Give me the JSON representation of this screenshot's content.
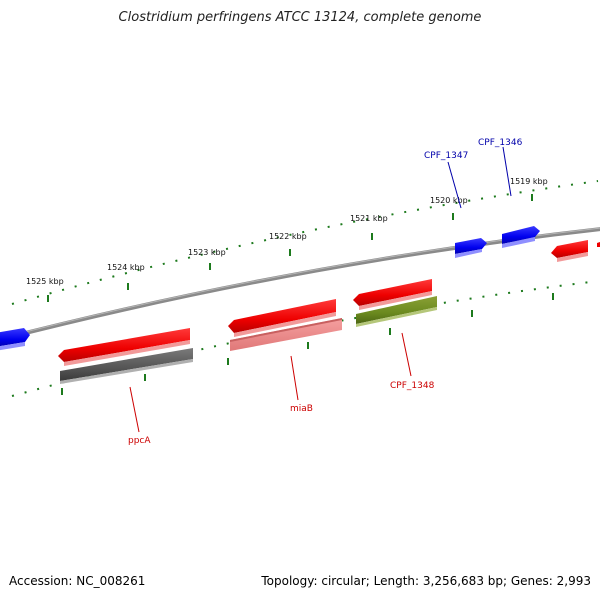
{
  "title": "Clostridium perfringens ATCC 13124, complete genome",
  "footer": {
    "accession": "Accession: NC_008261",
    "summary": "Topology: circular; Length: 3,256,683 bp; Genes: 2,993"
  },
  "colors": {
    "backbone": "#7a7a7a",
    "tick": "#1d7a1d",
    "forward_cds": "#0000ee",
    "reverse_cds": "#ee0000",
    "label_forward": "#0000aa",
    "label_reverse": "#cc0000"
  },
  "tick_labels": [
    {
      "text": "1519 kbp",
      "position_kbp": 1519
    },
    {
      "text": "1520 kbp",
      "position_kbp": 1520
    },
    {
      "text": "1521 kbp",
      "position_kbp": 1521
    },
    {
      "text": "1522 kbp",
      "position_kbp": 1522
    },
    {
      "text": "1523 kbp",
      "position_kbp": 1523
    },
    {
      "text": "1524 kbp",
      "position_kbp": 1524
    },
    {
      "text": "1525 kbp",
      "position_kbp": 1525
    }
  ],
  "gene_labels": [
    {
      "text": "CPF_1346",
      "strand": "forward"
    },
    {
      "text": "CPF_1347",
      "strand": "forward"
    },
    {
      "text": "CPF_1348",
      "strand": "reverse"
    },
    {
      "text": "miaB",
      "strand": "reverse"
    },
    {
      "text": "ppcA",
      "strand": "reverse"
    }
  ]
}
